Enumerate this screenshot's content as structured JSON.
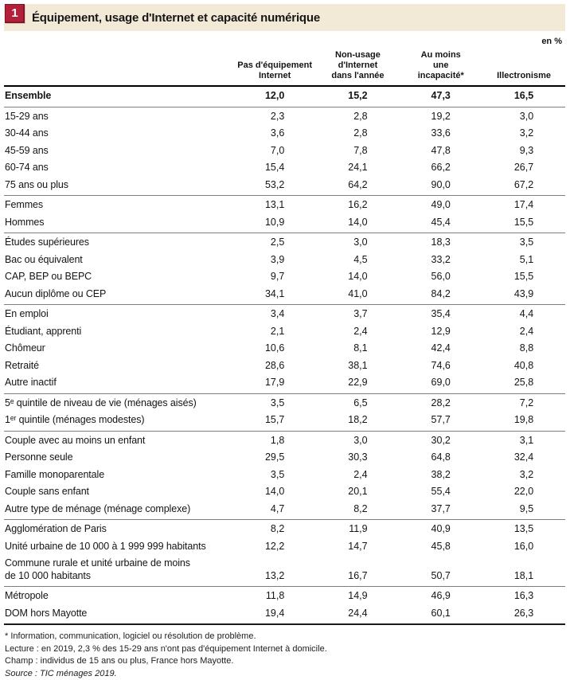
{
  "header": {
    "badge": "1",
    "title": "Équipement, usage d'Internet et capacité numérique",
    "unit_label": "en %"
  },
  "colors": {
    "badge_red": "#b41f3a",
    "strip_beige": "#f3e9d7"
  },
  "table": {
    "columns": [
      "Pas d'équipement\nInternet",
      "Non-usage\nd'Internet\ndans l'année",
      "Au moins\nune\nincapacité*",
      "Illectronisme"
    ],
    "groups": [
      {
        "rows": [
          {
            "label": "Ensemble",
            "bold": true,
            "values": [
              "12,0",
              "15,2",
              "47,3",
              "16,5"
            ]
          }
        ]
      },
      {
        "rows": [
          {
            "label": "15-29 ans",
            "values": [
              "2,3",
              "2,8",
              "19,2",
              "3,0"
            ]
          },
          {
            "label": "30-44 ans",
            "values": [
              "3,6",
              "2,8",
              "33,6",
              "3,2"
            ]
          },
          {
            "label": "45-59 ans",
            "values": [
              "7,0",
              "7,8",
              "47,8",
              "9,3"
            ]
          },
          {
            "label": "60-74 ans",
            "values": [
              "15,4",
              "24,1",
              "66,2",
              "26,7"
            ]
          },
          {
            "label": "75 ans ou plus",
            "values": [
              "53,2",
              "64,2",
              "90,0",
              "67,2"
            ]
          }
        ]
      },
      {
        "rows": [
          {
            "label": "Femmes",
            "values": [
              "13,1",
              "16,2",
              "49,0",
              "17,4"
            ]
          },
          {
            "label": "Hommes",
            "values": [
              "10,9",
              "14,0",
              "45,4",
              "15,5"
            ]
          }
        ]
      },
      {
        "rows": [
          {
            "label": "Études supérieures",
            "values": [
              "2,5",
              "3,0",
              "18,3",
              "3,5"
            ]
          },
          {
            "label": "Bac ou équivalent",
            "values": [
              "3,9",
              "4,5",
              "33,2",
              "5,1"
            ]
          },
          {
            "label": "CAP, BEP ou BEPC",
            "values": [
              "9,7",
              "14,0",
              "56,0",
              "15,5"
            ]
          },
          {
            "label": "Aucun diplôme ou CEP",
            "values": [
              "34,1",
              "41,0",
              "84,2",
              "43,9"
            ]
          }
        ]
      },
      {
        "rows": [
          {
            "label": "En emploi",
            "values": [
              "3,4",
              "3,7",
              "35,4",
              "4,4"
            ]
          },
          {
            "label": "Étudiant, apprenti",
            "values": [
              "2,1",
              "2,4",
              "12,9",
              "2,4"
            ]
          },
          {
            "label": "Chômeur",
            "values": [
              "10,6",
              "8,1",
              "42,4",
              "8,8"
            ]
          },
          {
            "label": "Retraité",
            "values": [
              "28,6",
              "38,1",
              "74,6",
              "40,8"
            ]
          },
          {
            "label": "Autre inactif",
            "values": [
              "17,9",
              "22,9",
              "69,0",
              "25,8"
            ]
          }
        ]
      },
      {
        "rows": [
          {
            "label": "5ᵉ quintile de niveau de vie (ménages aisés)",
            "values": [
              "3,5",
              "6,5",
              "28,2",
              "7,2"
            ]
          },
          {
            "label": "1ᵉʳ quintile (ménages modestes)",
            "values": [
              "15,7",
              "18,2",
              "57,7",
              "19,8"
            ]
          }
        ]
      },
      {
        "rows": [
          {
            "label": "Couple avec au moins un enfant",
            "values": [
              "1,8",
              "3,0",
              "30,2",
              "3,1"
            ]
          },
          {
            "label": "Personne seule",
            "values": [
              "29,5",
              "30,3",
              "64,8",
              "32,4"
            ]
          },
          {
            "label": "Famille monoparentale",
            "values": [
              "3,5",
              "2,4",
              "38,2",
              "3,2"
            ]
          },
          {
            "label": "Couple sans enfant",
            "values": [
              "14,0",
              "20,1",
              "55,4",
              "22,0"
            ]
          },
          {
            "label": "Autre type de ménage (ménage complexe)",
            "values": [
              "4,7",
              "8,2",
              "37,7",
              "9,5"
            ]
          }
        ]
      },
      {
        "rows": [
          {
            "label": "Agglomération de Paris",
            "values": [
              "8,2",
              "11,9",
              "40,9",
              "13,5"
            ]
          },
          {
            "label": "Unité urbaine de 10 000 à 1 999 999 habitants",
            "values": [
              "12,2",
              "14,7",
              "45,8",
              "16,0"
            ]
          },
          {
            "label": "Commune rurale et unité urbaine de moins\nde 10 000 habitants",
            "values": [
              "13,2",
              "16,7",
              "50,7",
              "18,1"
            ]
          }
        ]
      },
      {
        "rows": [
          {
            "label": "Métropole",
            "values": [
              "11,8",
              "14,9",
              "46,9",
              "16,3"
            ]
          },
          {
            "label": "DOM hors Mayotte",
            "values": [
              "19,4",
              "24,4",
              "60,1",
              "26,3"
            ]
          }
        ]
      }
    ]
  },
  "footnotes": {
    "asterisk": "* Information, communication, logiciel ou résolution de problème.",
    "lecture": "Lecture : en 2019, 2,3 % des 15-29 ans n'ont pas d'équipement Internet à domicile.",
    "champ": "Champ : individus de 15 ans ou plus, France hors Mayotte.",
    "source": "Source : TIC ménages 2019."
  }
}
